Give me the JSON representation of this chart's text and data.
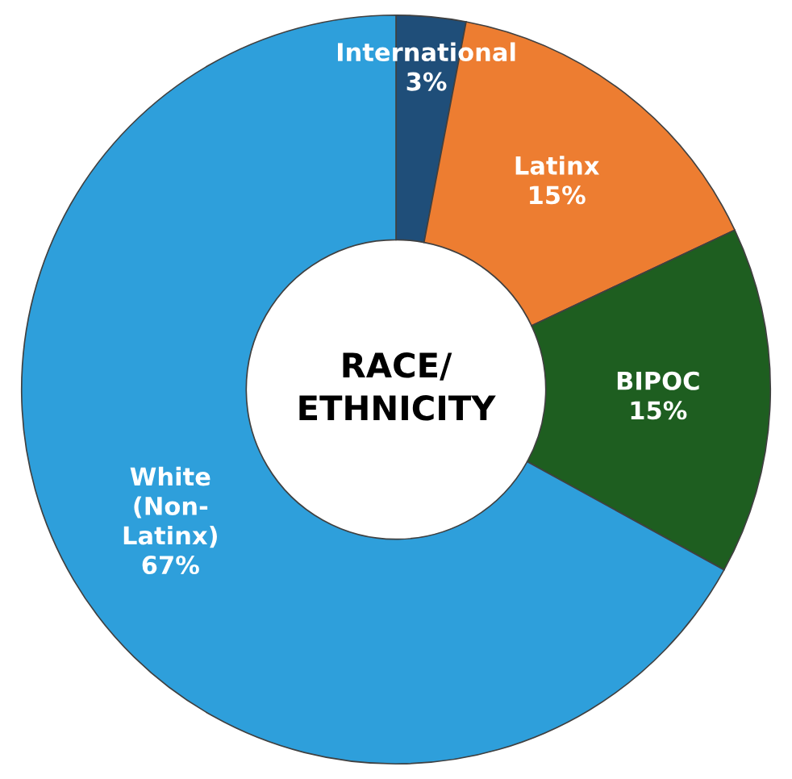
{
  "chart_data": {
    "type": "donut",
    "title": "RACE/\nETHNICITY",
    "categories": [
      "International",
      "Latinx",
      "BIPOC",
      "White\n(Non-\nLatinx)"
    ],
    "values": [
      3,
      15,
      15,
      67
    ],
    "colors": [
      "#1f4e79",
      "#ed7d31",
      "#1e5e20",
      "#2e9fdb"
    ],
    "value_labels": [
      "3%",
      "15%",
      "15%",
      "67%"
    ]
  }
}
